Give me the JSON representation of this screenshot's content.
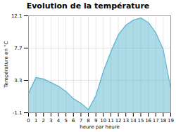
{
  "chart_data": {
    "type": "area",
    "title": "Evolution de la température",
    "xlabel": "heure par heure",
    "ylabel": "Température en °C",
    "x": [
      0,
      1,
      2,
      3,
      4,
      5,
      6,
      7,
      8,
      9,
      10,
      11,
      12,
      13,
      14,
      15,
      16,
      17,
      18,
      19
    ],
    "values": [
      1.5,
      3.7,
      3.5,
      3.0,
      2.5,
      1.8,
      0.8,
      0.2,
      -0.7,
      1.2,
      4.5,
      7.2,
      9.5,
      10.8,
      11.5,
      11.8,
      11.2,
      9.8,
      7.5,
      2.2
    ],
    "color": "#5ab5d0",
    "xlim": [
      0,
      19
    ],
    "xticks": [
      0,
      1,
      2,
      3,
      4,
      5,
      6,
      7,
      8,
      9,
      10,
      11,
      12,
      13,
      14,
      15,
      16,
      17,
      18,
      19
    ],
    "ylim": [
      -1.1,
      12.1
    ],
    "yticks": [
      -1.1,
      3.3,
      7.7,
      12.1
    ],
    "grid": true
  }
}
